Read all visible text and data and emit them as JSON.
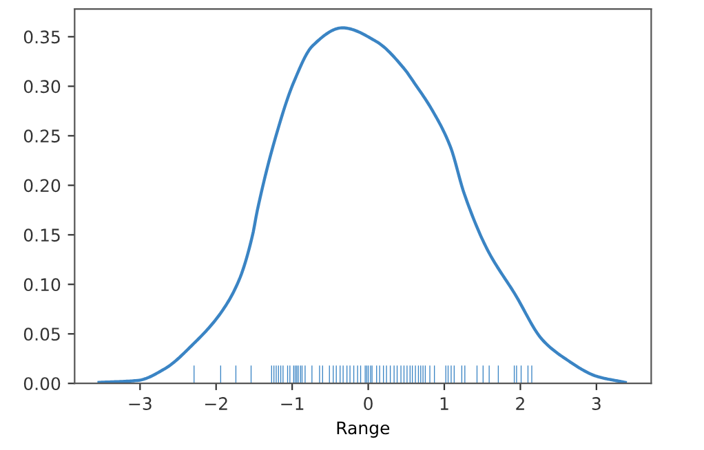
{
  "chart_data": {
    "type": "line",
    "xlabel": "Range",
    "xlim": [
      -3.86,
      3.72
    ],
    "ylim": [
      0,
      0.378
    ],
    "xticks": [
      {
        "value": -3,
        "label": "−3"
      },
      {
        "value": -2,
        "label": "−2"
      },
      {
        "value": -1,
        "label": "−1"
      },
      0,
      1,
      2,
      3
    ],
    "yticks": [
      {
        "value": 0,
        "label": "0.00"
      },
      {
        "value": 0.05,
        "label": "0.05"
      },
      {
        "value": 0.1,
        "label": "0.10"
      },
      {
        "value": 0.15,
        "label": "0.15"
      },
      {
        "value": 0.2,
        "label": "0.20"
      },
      {
        "value": 0.25,
        "label": "0.25"
      },
      {
        "value": 0.3,
        "label": "0.30"
      },
      {
        "value": 0.35,
        "label": "0.35"
      }
    ],
    "grid": false,
    "legend": false,
    "series": [
      {
        "color": "#3a84c4",
        "x": [
          -3.54,
          -3.03,
          -2.67,
          -2.31,
          -1.94,
          -1.7,
          -1.52,
          -1.46,
          -1.22,
          -0.98,
          -0.73,
          -0.34,
          0.11,
          0.47,
          0.6,
          0.84,
          1.08,
          1.26,
          1.56,
          1.93,
          2.29,
          2.59,
          3.01,
          3.38
        ],
        "values": [
          0.001,
          0.003,
          0.015,
          0.039,
          0.071,
          0.104,
          0.15,
          0.174,
          0.248,
          0.304,
          0.341,
          0.359,
          0.345,
          0.318,
          0.304,
          0.276,
          0.239,
          0.192,
          0.136,
          0.09,
          0.044,
          0.025,
          0.007,
          0.001
        ]
      },
      {
        "type": "bar",
        "color": "#3a84c4",
        "x": [
          -2.29,
          -1.94,
          -1.74,
          -1.54,
          -1.27,
          -1.24,
          -1.21,
          -1.18,
          -1.15,
          -1.12,
          -1.06,
          -1.03,
          -0.98,
          -0.96,
          -0.94,
          -0.92,
          -0.89,
          -0.87,
          -0.83,
          -0.74,
          -0.64,
          -0.6,
          -0.51,
          -0.46,
          -0.42,
          -0.37,
          -0.33,
          -0.28,
          -0.24,
          -0.19,
          -0.14,
          -0.1,
          -0.04,
          -0.02,
          0.0,
          0.03,
          0.05,
          0.11,
          0.15,
          0.2,
          0.24,
          0.29,
          0.34,
          0.38,
          0.43,
          0.47,
          0.51,
          0.55,
          0.58,
          0.62,
          0.66,
          0.69,
          0.72,
          0.75,
          0.81,
          0.87,
          1.02,
          1.05,
          1.09,
          1.13,
          1.23,
          1.27,
          1.43,
          1.51,
          1.59,
          1.71,
          1.92,
          1.95,
          2.01,
          2.1,
          2.15
        ],
        "values": [
          0.018,
          0.018,
          0.018,
          0.018,
          0.018,
          0.018,
          0.018,
          0.018,
          0.018,
          0.018,
          0.018,
          0.018,
          0.018,
          0.018,
          0.018,
          0.018,
          0.018,
          0.018,
          0.018,
          0.018,
          0.018,
          0.018,
          0.018,
          0.018,
          0.018,
          0.018,
          0.018,
          0.018,
          0.018,
          0.018,
          0.018,
          0.018,
          0.018,
          0.018,
          0.018,
          0.018,
          0.018,
          0.018,
          0.018,
          0.018,
          0.018,
          0.018,
          0.018,
          0.018,
          0.018,
          0.018,
          0.018,
          0.018,
          0.018,
          0.018,
          0.018,
          0.018,
          0.018,
          0.018,
          0.018,
          0.018,
          0.018,
          0.018,
          0.018,
          0.018,
          0.018,
          0.018,
          0.018,
          0.018,
          0.018,
          0.018,
          0.018,
          0.018,
          0.018,
          0.018,
          0.018
        ]
      }
    ]
  }
}
